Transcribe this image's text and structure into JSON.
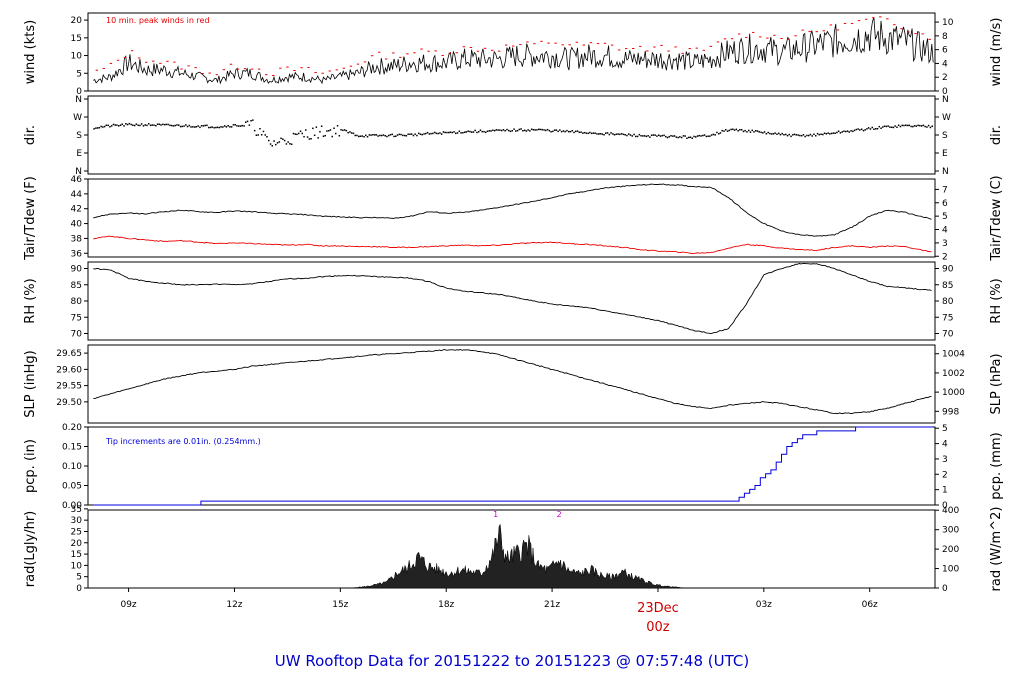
{
  "title": "UW Rooftop Data for 20151222  to  20151223 @ 07:57:48  (UTC)",
  "colors": {
    "primary": "#000000",
    "tdew": "#ee0000",
    "peak": "#ee0000",
    "pcp": "#0000dd",
    "title": "#0000cc",
    "date": "#cc0000",
    "rad_marker": "#cc00cc"
  },
  "x_axis": {
    "ticks": [
      {
        "label": "09z",
        "h": 9
      },
      {
        "label": "12z",
        "h": 12
      },
      {
        "label": "15z",
        "h": 15
      },
      {
        "label": "18z",
        "h": 18
      },
      {
        "label": "21z",
        "h": 21
      },
      {
        "label": "03z",
        "h": 27
      },
      {
        "label": "06z",
        "h": 30
      }
    ],
    "date_label": "23Dec",
    "date_sub": "00z",
    "date_h": 24
  },
  "chart_data": [
    {
      "type": "line",
      "ylabel_left": "wind (kts)",
      "ylabel_right": "wind (m/s)",
      "annotation": "10 min. peak winds in red",
      "ylim": [
        0,
        22
      ],
      "left_ticks": [
        "0",
        "5",
        "10",
        "15",
        "20"
      ],
      "right_ticks": [
        "0",
        "2",
        "4",
        "6",
        "8",
        "10"
      ],
      "series": [
        {
          "x": [
            8,
            8.5,
            9,
            9.5,
            10,
            10.5,
            11,
            11.5,
            12,
            12.5,
            13,
            13.5,
            14,
            14.5,
            15,
            15.5,
            16,
            16.5,
            17,
            17.5,
            18,
            18.5,
            19,
            19.5,
            20,
            20.5,
            21,
            21.5,
            22,
            22.5,
            23,
            23.5,
            24,
            24.5,
            25,
            25.5,
            26,
            26.5,
            27,
            27.5,
            28,
            28.5,
            29,
            29.5,
            30,
            30.5,
            31,
            31.5
          ],
          "values": [
            3,
            4,
            8,
            6,
            6,
            5,
            4,
            3,
            5,
            5,
            3,
            4,
            4,
            3,
            4,
            5,
            7,
            7,
            8,
            8,
            8,
            9,
            9,
            9,
            10,
            10,
            10,
            9,
            10,
            10,
            9,
            9,
            9,
            9,
            8,
            9,
            11,
            12,
            12,
            11,
            12,
            13,
            14,
            15,
            16,
            15,
            14,
            12
          ]
        },
        {
          "x": [
            8,
            8.5,
            9,
            9.5,
            10,
            10.5,
            11,
            11.5,
            12,
            12.5,
            13,
            13.5,
            14,
            14.5,
            15,
            15.5,
            16,
            16.5,
            17,
            17.5,
            18,
            18.5,
            19,
            19.5,
            20,
            20.5,
            21,
            21.5,
            22,
            22.5,
            23,
            23.5,
            24,
            24.5,
            25,
            25.5,
            26,
            26.5,
            27,
            27.5,
            28,
            28.5,
            29,
            29.5,
            30,
            30.5,
            31,
            31.5
          ],
          "values": [
            5,
            7,
            11,
            9,
            8,
            7,
            6,
            5,
            7,
            7,
            5,
            6,
            6,
            5,
            6,
            8,
            10,
            10,
            11,
            11,
            11,
            12,
            12,
            12,
            13,
            13,
            14,
            13,
            13,
            13,
            12,
            12,
            12,
            12,
            11,
            12,
            15,
            16,
            16,
            15,
            16,
            17,
            18,
            19,
            20,
            20,
            18,
            16
          ]
        }
      ]
    },
    {
      "type": "scatter",
      "ylabel_left": "dir.",
      "ylabel_right": "dir.",
      "ylim": [
        0,
        360
      ],
      "left_ticks": [
        "N",
        "E",
        "S",
        "W",
        "N"
      ],
      "right_ticks": [
        "N",
        "E",
        "S",
        "W",
        "N"
      ],
      "series": [
        {
          "x": [
            8,
            8.5,
            9,
            9.5,
            10,
            10.5,
            11,
            11.5,
            12,
            12.5,
            13,
            13.5,
            14,
            14.5,
            15,
            15.5,
            16,
            16.5,
            17,
            17.5,
            18,
            18.5,
            19,
            19.5,
            20,
            20.5,
            21,
            21.5,
            22,
            22.5,
            23,
            23.5,
            24,
            24.5,
            25,
            25.5,
            26,
            26.5,
            27,
            27.5,
            28,
            28.5,
            29,
            29.5,
            30,
            30.5,
            31,
            31.5
          ],
          "values": [
            220,
            230,
            235,
            235,
            232,
            230,
            228,
            225,
            232,
            230,
            140,
            160,
            190,
            200,
            210,
            180,
            180,
            182,
            185,
            190,
            195,
            200,
            202,
            205,
            208,
            210,
            205,
            200,
            195,
            190,
            185,
            180,
            178,
            175,
            172,
            185,
            210,
            205,
            195,
            185,
            180,
            185,
            195,
            205,
            215,
            225,
            230,
            228
          ]
        }
      ]
    },
    {
      "type": "line",
      "ylabel_left": "Tair/Tdew (F)",
      "ylabel_right": "Tair/Tdew (C)",
      "ylim": [
        35.5,
        46
      ],
      "left_ticks": [
        "36",
        "38",
        "40",
        "42",
        "44",
        "46"
      ],
      "right_ticks": [
        "2",
        "3",
        "4",
        "5",
        "6",
        "7"
      ],
      "series": [
        {
          "x": [
            8,
            8.5,
            9,
            9.5,
            10,
            10.5,
            11,
            11.5,
            12,
            12.5,
            13,
            13.5,
            14,
            14.5,
            15,
            15.5,
            16,
            16.5,
            17,
            17.5,
            18,
            18.5,
            19,
            19.5,
            20,
            20.5,
            21,
            21.5,
            22,
            22.5,
            23,
            23.5,
            24,
            24.5,
            25,
            25.5,
            26,
            26.5,
            27,
            27.5,
            28,
            28.5,
            29,
            29.5,
            30,
            30.5,
            31,
            31.5
          ],
          "values": [
            40.8,
            41.3,
            41.4,
            41.3,
            41.6,
            41.8,
            41.6,
            41.5,
            41.7,
            41.6,
            41.4,
            41.3,
            41.2,
            41.0,
            40.9,
            40.8,
            40.8,
            40.7,
            41.0,
            41.6,
            41.4,
            41.5,
            41.8,
            42.2,
            42.6,
            43.0,
            43.5,
            44.0,
            44.4,
            44.8,
            45.0,
            45.2,
            45.3,
            45.2,
            45.0,
            44.9,
            43.5,
            41.5,
            40.0,
            39.0,
            38.5,
            38.3,
            38.5,
            39.5,
            41.0,
            41.8,
            41.5,
            40.9
          ]
        },
        {
          "x": [
            8,
            8.5,
            9,
            9.5,
            10,
            10.5,
            11,
            11.5,
            12,
            12.5,
            13,
            13.5,
            14,
            14.5,
            15,
            15.5,
            16,
            16.5,
            17,
            17.5,
            18,
            18.5,
            19,
            19.5,
            20,
            20.5,
            21,
            21.5,
            22,
            22.5,
            23,
            23.5,
            24,
            24.5,
            25,
            25.5,
            26,
            26.5,
            27,
            27.5,
            28,
            28.5,
            29,
            29.5,
            30,
            30.5,
            31,
            31.5
          ],
          "values": [
            38.0,
            38.3,
            38.0,
            37.8,
            37.6,
            37.7,
            37.5,
            37.3,
            37.4,
            37.3,
            37.2,
            37.1,
            37.2,
            37.0,
            37.0,
            36.9,
            36.9,
            36.8,
            36.8,
            36.9,
            37.0,
            37.1,
            37.0,
            37.1,
            37.3,
            37.4,
            37.5,
            37.3,
            37.2,
            37.0,
            36.8,
            36.5,
            36.3,
            36.2,
            36.0,
            36.1,
            36.7,
            37.2,
            37.0,
            36.7,
            36.5,
            36.4,
            36.8,
            37.0,
            36.8,
            37.0,
            36.9,
            36.4
          ]
        }
      ]
    },
    {
      "type": "line",
      "ylabel_left": "RH (%)",
      "ylabel_right": "RH (%)",
      "ylim": [
        68,
        92
      ],
      "left_ticks": [
        "70",
        "75",
        "80",
        "85",
        "90"
      ],
      "right_ticks": [
        "70",
        "75",
        "80",
        "85",
        "90"
      ],
      "series": [
        {
          "x": [
            8,
            8.5,
            9,
            9.5,
            10,
            10.5,
            11,
            11.5,
            12,
            12.5,
            13,
            13.5,
            14,
            14.5,
            15,
            15.5,
            16,
            16.5,
            17,
            17.5,
            18,
            18.5,
            19,
            19.5,
            20,
            20.5,
            21,
            21.5,
            22,
            22.5,
            23,
            23.5,
            24,
            24.5,
            25,
            25.5,
            26,
            26.5,
            27,
            27.5,
            28,
            28.5,
            29,
            29.5,
            30,
            30.5,
            31,
            31.5
          ],
          "values": [
            90.0,
            89.5,
            87.0,
            86.0,
            85.5,
            85.0,
            85.0,
            85.2,
            85.0,
            85.3,
            86.0,
            86.8,
            87.0,
            87.5,
            87.8,
            87.8,
            87.5,
            87.3,
            87.0,
            86.0,
            84.0,
            83.0,
            82.5,
            82.0,
            81.0,
            80.0,
            79.0,
            78.5,
            78.0,
            77.0,
            76.0,
            75.0,
            74.0,
            72.5,
            71.0,
            70.0,
            71.5,
            79.0,
            88.0,
            90.0,
            91.5,
            91.5,
            90.0,
            88.0,
            86.0,
            84.5,
            84.0,
            83.5
          ]
        }
      ]
    },
    {
      "type": "line",
      "ylabel_left": "SLP (inHg)",
      "ylabel_right": "SLP (hPa)",
      "ylim": [
        29.435,
        29.675
      ],
      "left_ticks": [
        "29.50",
        "29.55",
        "29.60",
        "29.65"
      ],
      "right_ticks": [
        "998",
        "1000",
        "1002",
        "1004"
      ],
      "series": [
        {
          "x": [
            8,
            8.5,
            9,
            9.5,
            10,
            10.5,
            11,
            11.5,
            12,
            12.5,
            13,
            13.5,
            14,
            14.5,
            15,
            15.5,
            16,
            16.5,
            17,
            17.5,
            18,
            18.5,
            19,
            19.5,
            20,
            20.5,
            21,
            21.5,
            22,
            22.5,
            23,
            23.5,
            24,
            24.5,
            25,
            25.5,
            26,
            26.5,
            27,
            27.5,
            28,
            28.5,
            29,
            29.5,
            30,
            30.5,
            31,
            31.5
          ],
          "values": [
            29.51,
            29.525,
            29.54,
            29.555,
            29.57,
            29.58,
            29.59,
            29.595,
            29.6,
            29.61,
            29.615,
            29.62,
            29.625,
            29.63,
            29.635,
            29.64,
            29.645,
            29.648,
            29.652,
            29.656,
            29.66,
            29.66,
            29.655,
            29.645,
            29.63,
            29.615,
            29.6,
            29.585,
            29.57,
            29.555,
            29.54,
            29.525,
            29.51,
            29.495,
            29.485,
            29.48,
            29.49,
            29.495,
            29.5,
            29.495,
            29.485,
            29.475,
            29.465,
            29.465,
            29.47,
            29.48,
            29.495,
            29.51
          ]
        }
      ]
    },
    {
      "type": "line",
      "ylabel_left": "pcp. (in)",
      "ylabel_right": "pcp. (mm)",
      "annotation": "Tip increments are 0.01in. (0.254mm.)",
      "ylim": [
        0,
        0.2
      ],
      "left_ticks": [
        "0.00",
        "0.05",
        "0.10",
        "0.15",
        "0.20"
      ],
      "right_ticks": [
        "0",
        "1",
        "2",
        "3",
        "4",
        "5"
      ],
      "series": [
        {
          "x": [
            8,
            10.95,
            11.05,
            26.15,
            26.3,
            26.45,
            26.6,
            26.75,
            26.9,
            27.05,
            27.2,
            27.35,
            27.5,
            27.65,
            27.8,
            27.95,
            28.1,
            28.5,
            29.0,
            29.6,
            31.8
          ],
          "values": [
            0.0,
            0.0,
            0.01,
            0.01,
            0.02,
            0.03,
            0.04,
            0.05,
            0.07,
            0.08,
            0.09,
            0.11,
            0.13,
            0.15,
            0.16,
            0.17,
            0.18,
            0.19,
            0.19,
            0.2,
            0.2
          ]
        }
      ]
    },
    {
      "type": "area",
      "ylabel_left": "rad(Lgly/hr)",
      "ylabel_right": "rad (W/m^2)",
      "ylim": [
        0,
        34.5
      ],
      "left_ticks": [
        "0",
        "5",
        "10",
        "15",
        "20",
        "25",
        "30",
        "35"
      ],
      "right_ticks": [
        "0",
        "100",
        "200",
        "300",
        "400"
      ],
      "markers": [
        {
          "label": "1",
          "h": 19.4
        },
        {
          "label": "2",
          "h": 21.2
        }
      ],
      "series": [
        {
          "x": [
            15.3,
            15.8,
            16.3,
            16.6,
            16.9,
            17.2,
            17.5,
            17.8,
            18.1,
            18.4,
            18.7,
            19.0,
            19.3,
            19.5,
            19.7,
            20.0,
            20.3,
            20.6,
            20.9,
            21.2,
            21.5,
            21.8,
            22.1,
            22.4,
            22.7,
            23.0,
            23.3,
            23.6,
            23.9,
            24.2,
            24.5,
            24.8
          ],
          "values": [
            0,
            1,
            3,
            8,
            11,
            17,
            12,
            10,
            8,
            10,
            9,
            8,
            17,
            30,
            16,
            19,
            24,
            12,
            10,
            15,
            9,
            8,
            10,
            7,
            6,
            9,
            6,
            4,
            2,
            1,
            0.5,
            0
          ]
        }
      ]
    }
  ]
}
